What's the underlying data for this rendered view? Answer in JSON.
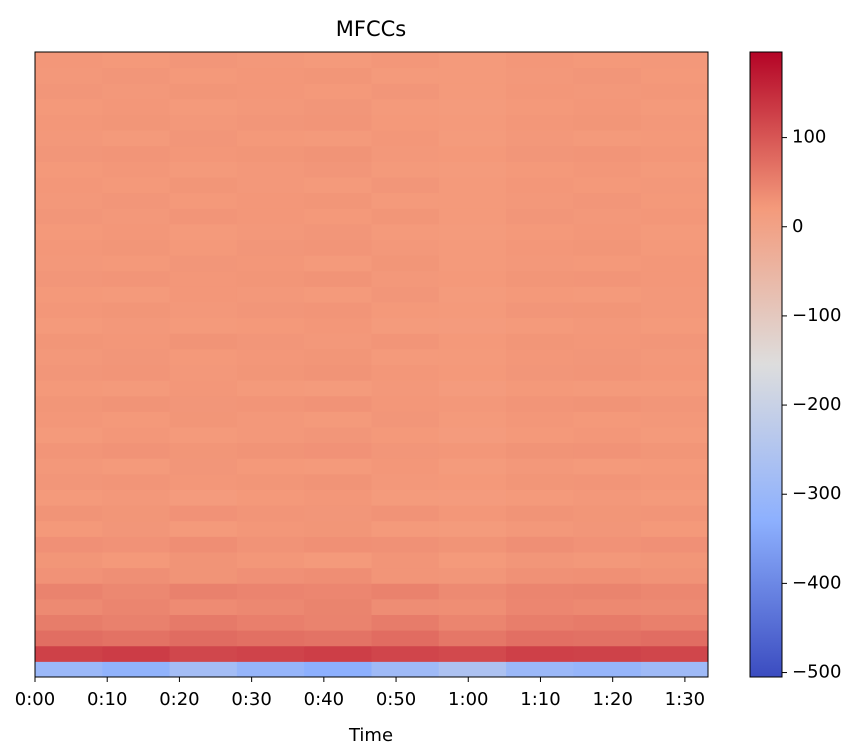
{
  "chart_data": {
    "type": "heatmap",
    "title": "MFCCs",
    "xlabel": "Time",
    "xlim": [
      0,
      93.2
    ],
    "xticks": [
      {
        "value": 0,
        "label": "0:00"
      },
      {
        "value": 10,
        "label": "0:10"
      },
      {
        "value": 20,
        "label": "0:20"
      },
      {
        "value": 30,
        "label": "0:30"
      },
      {
        "value": 40,
        "label": "0:40"
      },
      {
        "value": 50,
        "label": "0:50"
      },
      {
        "value": 60,
        "label": "1:00"
      },
      {
        "value": 70,
        "label": "1:10"
      },
      {
        "value": 80,
        "label": "1:20"
      },
      {
        "value": 90,
        "label": "1:30"
      }
    ],
    "xbins": [
      0,
      9.32,
      18.64,
      27.96,
      37.28,
      46.6,
      55.92,
      65.24,
      74.56,
      83.88,
      93.2
    ],
    "clim": [
      -505,
      196
    ],
    "cticks": [
      {
        "value": -500,
        "label": "−500"
      },
      {
        "value": -400,
        "label": "−400"
      },
      {
        "value": -300,
        "label": "−300"
      },
      {
        "value": -200,
        "label": "−200"
      },
      {
        "value": -100,
        "label": "−100"
      },
      0,
      100
    ],
    "colormap": [
      "#3b4cc0",
      "#8db0fe",
      "#dddddd",
      "#f49a7b",
      "#b40426"
    ],
    "z": [
      [
        -300,
        -320,
        -280,
        -310,
        -330,
        -290,
        -260,
        -300,
        -310,
        -290
      ],
      [
        125,
        130,
        118,
        122,
        128,
        120,
        115,
        126,
        124,
        119
      ],
      [
        72,
        68,
        75,
        70,
        66,
        74,
        62,
        71,
        69,
        73
      ],
      [
        55,
        50,
        58,
        52,
        48,
        56,
        45,
        53,
        57,
        51
      ],
      [
        40,
        45,
        38,
        42,
        47,
        36,
        35,
        44,
        41,
        39
      ],
      [
        48,
        42,
        50,
        46,
        44,
        49,
        40,
        45,
        47,
        43
      ],
      [
        30,
        34,
        28,
        32,
        35,
        27,
        25,
        31,
        33,
        29
      ],
      [
        26,
        22,
        28,
        24,
        21,
        27,
        20,
        25,
        23,
        26
      ],
      [
        32,
        30,
        35,
        29,
        33,
        31,
        28,
        34,
        30,
        32
      ],
      [
        22,
        25,
        20,
        24,
        26,
        21,
        19,
        23,
        25,
        22
      ],
      [
        28,
        26,
        30,
        27,
        25,
        29,
        24,
        28,
        26,
        27
      ],
      [
        20,
        23,
        18,
        22,
        24,
        19,
        17,
        21,
        23,
        20
      ],
      [
        25,
        27,
        24,
        26,
        28,
        23,
        22,
        26,
        27,
        24
      ],
      [
        23,
        21,
        25,
        22,
        20,
        24,
        19,
        23,
        21,
        22
      ],
      [
        27,
        29,
        26,
        28,
        30,
        25,
        24,
        28,
        29,
        26
      ],
      [
        21,
        24,
        20,
        23,
        25,
        22,
        18,
        22,
        24,
        21
      ],
      [
        24,
        22,
        26,
        23,
        21,
        25,
        20,
        24,
        22,
        23
      ],
      [
        26,
        28,
        25,
        27,
        29,
        24,
        23,
        27,
        28,
        25
      ],
      [
        22,
        20,
        24,
        21,
        19,
        23,
        18,
        22,
        20,
        21
      ],
      [
        25,
        27,
        23,
        26,
        28,
        24,
        22,
        25,
        27,
        24
      ],
      [
        23,
        25,
        22,
        24,
        26,
        21,
        20,
        24,
        25,
        23
      ],
      [
        26,
        24,
        28,
        25,
        23,
        27,
        22,
        26,
        24,
        25
      ],
      [
        21,
        23,
        20,
        22,
        24,
        19,
        18,
        21,
        23,
        20
      ],
      [
        24,
        26,
        23,
        25,
        27,
        22,
        21,
        25,
        26,
        23
      ],
      [
        22,
        21,
        24,
        23,
        20,
        25,
        19,
        22,
        21,
        23
      ],
      [
        25,
        27,
        24,
        26,
        28,
        23,
        22,
        26,
        27,
        24
      ],
      [
        23,
        22,
        25,
        24,
        21,
        26,
        20,
        23,
        22,
        24
      ],
      [
        24,
        26,
        22,
        25,
        27,
        23,
        21,
        24,
        26,
        22
      ],
      [
        22,
        24,
        21,
        23,
        25,
        20,
        19,
        22,
        24,
        21
      ],
      [
        25,
        23,
        27,
        24,
        22,
        26,
        21,
        25,
        23,
        24
      ],
      [
        23,
        25,
        22,
        24,
        26,
        21,
        20,
        23,
        25,
        22
      ],
      [
        24,
        22,
        26,
        23,
        21,
        25,
        20,
        24,
        22,
        23
      ],
      [
        22,
        24,
        21,
        23,
        25,
        20,
        19,
        22,
        24,
        21
      ],
      [
        25,
        27,
        24,
        26,
        28,
        23,
        22,
        25,
        27,
        24
      ],
      [
        23,
        21,
        25,
        22,
        20,
        24,
        19,
        23,
        21,
        22
      ],
      [
        24,
        26,
        23,
        25,
        27,
        22,
        21,
        24,
        26,
        23
      ],
      [
        22,
        24,
        21,
        23,
        25,
        20,
        19,
        22,
        24,
        21
      ],
      [
        25,
        23,
        26,
        24,
        22,
        25,
        21,
        24,
        23,
        24
      ],
      [
        23,
        25,
        22,
        24,
        26,
        21,
        20,
        23,
        25,
        22
      ],
      [
        24,
        22,
        25,
        23,
        21,
        24,
        20,
        24,
        22,
        23
      ]
    ]
  }
}
